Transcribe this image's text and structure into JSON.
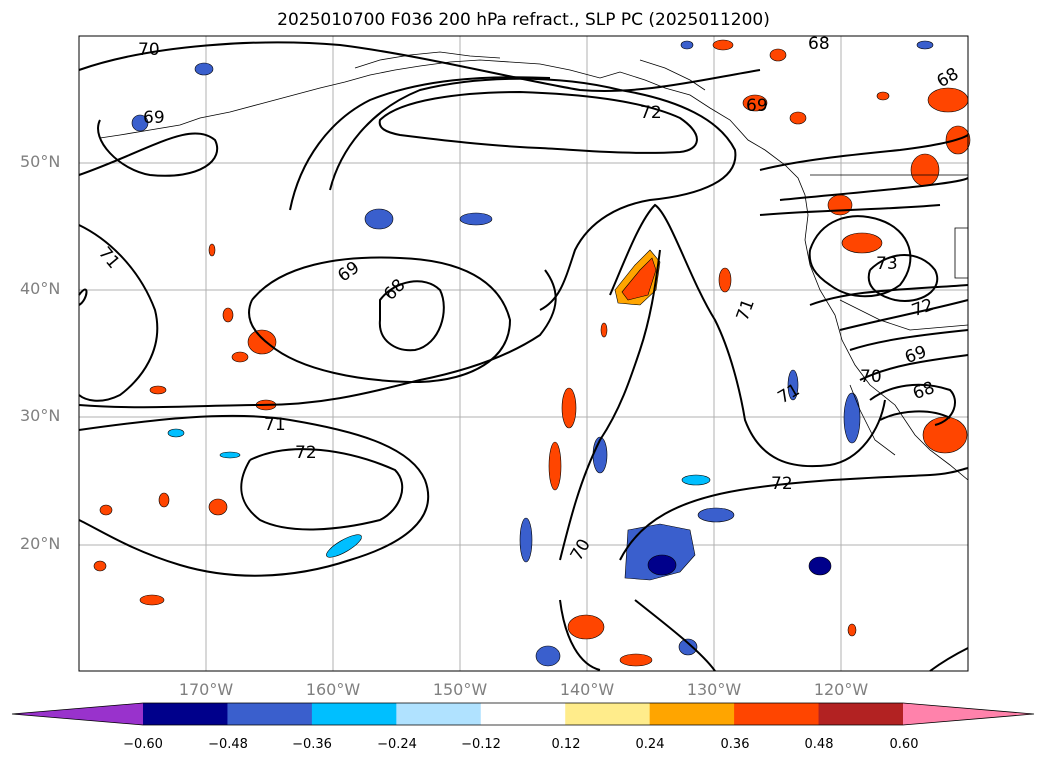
{
  "title": "2025010700 F036 200 hPa refract., SLP PC (2025011200)",
  "lat_labels": [
    "50°N",
    "40°N",
    "30°N",
    "20°N"
  ],
  "lon_labels": [
    "170°W",
    "160°W",
    "150°W",
    "140°W",
    "130°W",
    "120°W"
  ],
  "contour_labels": [
    "70",
    "69",
    "71",
    "69",
    "68",
    "71",
    "72",
    "72",
    "72",
    "70",
    "71",
    "71",
    "68",
    "68",
    "69",
    "73",
    "72",
    "69",
    "68",
    "70"
  ],
  "colorbar": {
    "ticks": [
      "−0.60",
      "−0.48",
      "−0.36",
      "−0.24",
      "−0.12",
      "0.12",
      "0.24",
      "0.36",
      "0.48",
      "0.60"
    ],
    "colors": [
      "#9932cc",
      "#00008b",
      "#3a5fcd",
      "#00bfff",
      "#b0e2ff",
      "#ffffff",
      "#ffec8b",
      "#ffa500",
      "#ff4500",
      "#b22222",
      "#ff82ab"
    ]
  }
}
